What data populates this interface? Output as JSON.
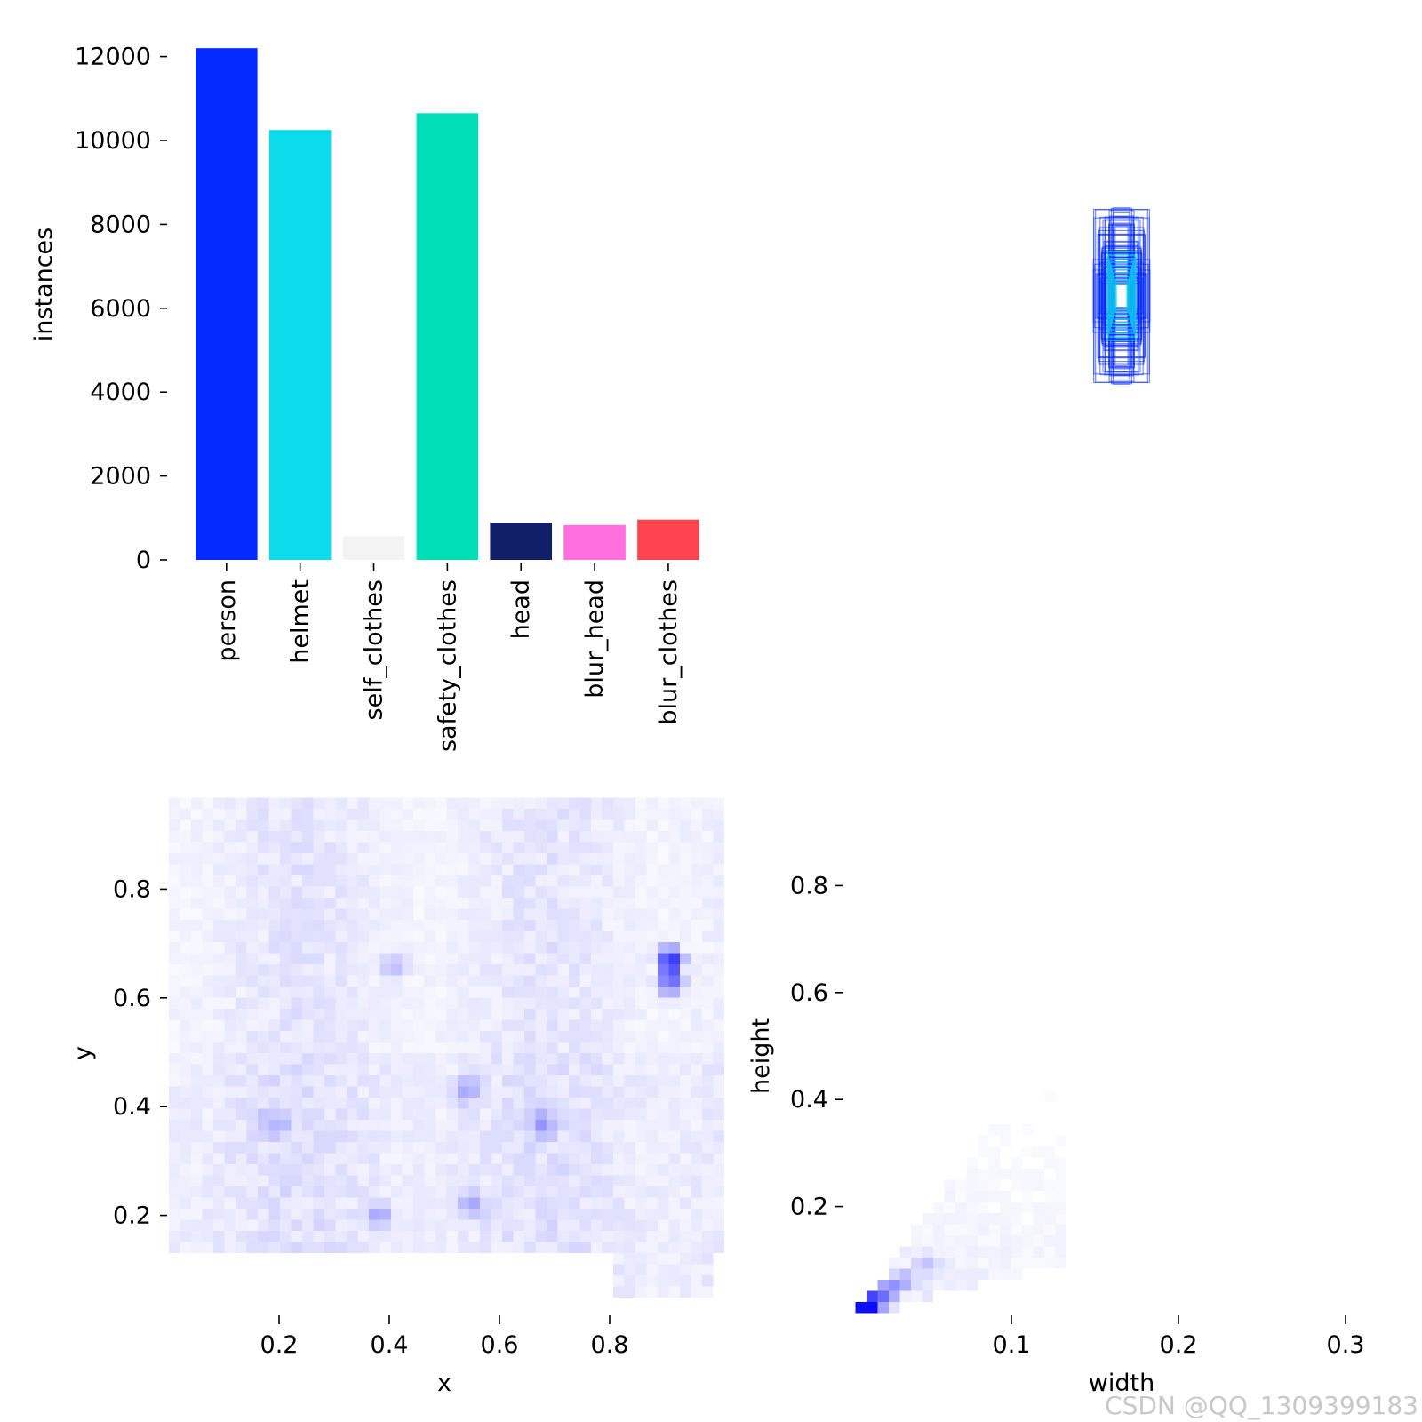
{
  "chart_data": [
    {
      "type": "bar",
      "ylabel": "instances",
      "xlabel": "",
      "categories": [
        "person",
        "helmet",
        "self_clothes",
        "safety_clothes",
        "head",
        "blur_head",
        "blur_clothes"
      ],
      "values": [
        12200,
        10250,
        570,
        10650,
        890,
        830,
        960
      ],
      "colors": [
        "#042aff",
        "#0bdbeb",
        "#f3f3f3",
        "#00dfb7",
        "#111f68",
        "#ff6fdd",
        "#ff444f"
      ],
      "ylim": [
        0,
        12500
      ],
      "yticks": [
        "0",
        "2000",
        "4000",
        "6000",
        "8000",
        "10000",
        "12000"
      ]
    },
    {
      "type": "other",
      "description_label": "box overlay",
      "rect_color": "#042aff",
      "center_color": "#0bdbeb"
    },
    {
      "type": "heatmap",
      "xlabel": "x",
      "ylabel": "y",
      "xticks": [
        "0.2",
        "0.4",
        "0.6",
        "0.8"
      ],
      "yticks": [
        "0.2",
        "0.4",
        "0.6",
        "0.8"
      ],
      "xlim": [
        0,
        1
      ],
      "ylim": [
        0,
        1
      ],
      "color": "#0000ff",
      "hotspots": [
        {
          "x": 0.91,
          "y": 0.67,
          "weight": 1.0
        },
        {
          "x": 0.91,
          "y": 0.63,
          "weight": 0.7
        },
        {
          "x": 0.38,
          "y": 0.2,
          "weight": 0.35
        },
        {
          "x": 0.55,
          "y": 0.22,
          "weight": 0.35
        },
        {
          "x": 0.68,
          "y": 0.37,
          "weight": 0.35
        },
        {
          "x": 0.54,
          "y": 0.43,
          "weight": 0.3
        },
        {
          "x": 0.19,
          "y": 0.37,
          "weight": 0.28
        },
        {
          "x": 0.41,
          "y": 0.66,
          "weight": 0.28
        }
      ]
    },
    {
      "type": "heatmap",
      "xlabel": "width",
      "ylabel": "height",
      "xticks": [
        "0.1",
        "0.2",
        "0.3"
      ],
      "yticks": [
        "0.2",
        "0.4",
        "0.6",
        "0.8"
      ],
      "color": "#0000ff",
      "hotspots": [
        {
          "x": 0.015,
          "y": 0.02,
          "weight": 1.0
        },
        {
          "x": 0.01,
          "y": 0.005,
          "weight": 0.75
        },
        {
          "x": 0.025,
          "y": 0.04,
          "weight": 0.55
        },
        {
          "x": 0.035,
          "y": 0.06,
          "weight": 0.35
        },
        {
          "x": 0.05,
          "y": 0.09,
          "weight": 0.2
        }
      ]
    }
  ],
  "watermark": "CSDN @QQ_1309399183"
}
